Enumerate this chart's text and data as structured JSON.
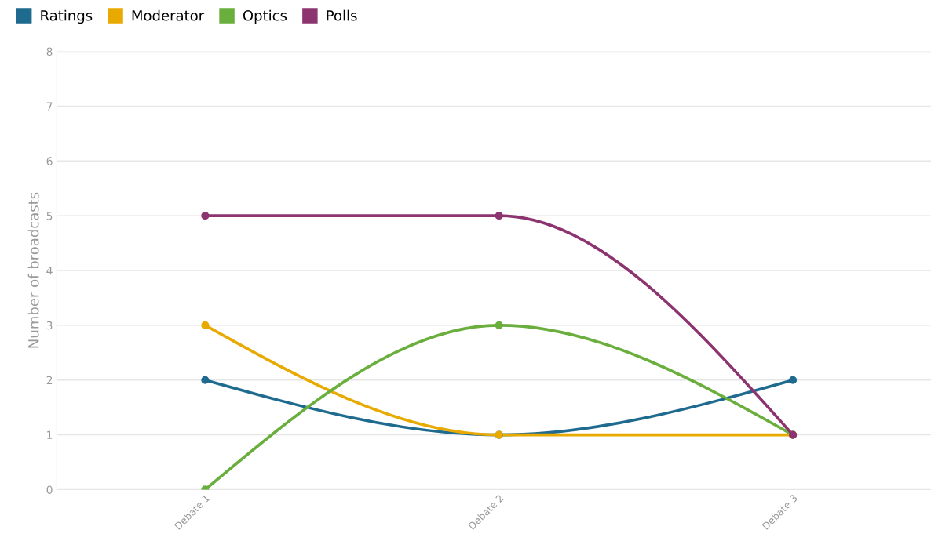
{
  "chart_data": {
    "type": "line",
    "ylabel": "Number of broadcasts",
    "categories": [
      "Debate 1",
      "Debate 2",
      "Debate 3"
    ],
    "series": [
      {
        "name": "Ratings",
        "color": "#1f6a8f",
        "values": [
          2,
          1,
          2
        ]
      },
      {
        "name": "Moderator",
        "color": "#e8a900",
        "values": [
          3,
          1,
          1
        ]
      },
      {
        "name": "Optics",
        "color": "#6aaf3d",
        "values": [
          0,
          3,
          1
        ]
      },
      {
        "name": "Polls",
        "color": "#8c3470",
        "values": [
          5,
          5,
          1
        ]
      }
    ],
    "ylim": [
      0,
      8
    ],
    "yticks": [
      0,
      1,
      2,
      3,
      4,
      5,
      6,
      7,
      8
    ],
    "grid": "y",
    "legend": "top left",
    "marker": "circle",
    "line_style": "solid"
  }
}
